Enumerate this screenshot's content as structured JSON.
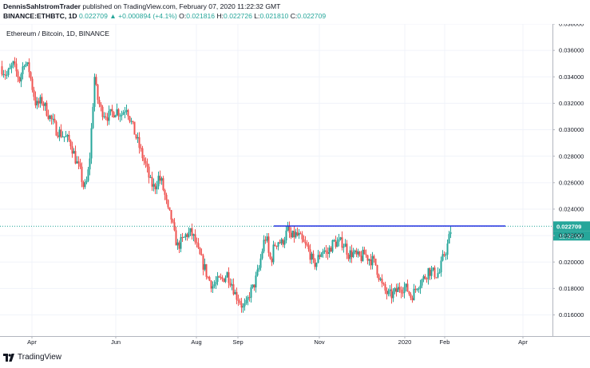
{
  "header": {
    "author": "DennisSahlstromTrader",
    "published": "published on TradingView.com, February 07, 2020 11:22:32 GMT",
    "symbol": "BINANCE:ETHBTC, 1D",
    "price": "0.022709",
    "change": "+0.000894 (+4.1%)",
    "o_label": "O:",
    "o": "0.021816",
    "h_label": "H:",
    "h": "0.022726",
    "l_label": "L:",
    "l": "0.021810",
    "c_label": "C:",
    "c": "0.022709"
  },
  "footer": {
    "brand": "TradingView"
  },
  "colors": {
    "up": "#26a69a",
    "down": "#ef5350",
    "resistance": "#2030e0",
    "price_line": "#26a69a"
  },
  "chart_data": {
    "type": "candlestick",
    "title": "Ethereum / Bitcoin, 1D, BINANCE",
    "x_ticks": [
      "Apr",
      "Jun",
      "Aug",
      "Sep",
      "Nov",
      "2020",
      "Feb",
      "Apr"
    ],
    "y_ticks": [
      "0.038000",
      "0.036000",
      "0.034000",
      "0.032000",
      "0.030000",
      "0.028000",
      "0.026000",
      "0.024000",
      "0.022000",
      "0.020000",
      "0.018000",
      "0.016000"
    ],
    "ylim": [
      0.0144,
      0.038
    ],
    "last_price_label": "0.022709",
    "countdown_label": "12:37:29",
    "resistance_level": 0.02272,
    "price_anchors": [
      [
        0,
        0.0348
      ],
      [
        8,
        0.0341
      ],
      [
        16,
        0.0349
      ],
      [
        24,
        0.0338
      ],
      [
        30,
        0.0352
      ],
      [
        36,
        0.0345
      ],
      [
        40,
        0.0332
      ],
      [
        45,
        0.0318
      ],
      [
        52,
        0.0322
      ],
      [
        60,
        0.0312
      ],
      [
        70,
        0.03
      ],
      [
        80,
        0.0295
      ],
      [
        88,
        0.029
      ],
      [
        95,
        0.0276
      ],
      [
        100,
        0.0268
      ],
      [
        105,
        0.0255
      ],
      [
        109,
        0.0262
      ],
      [
        112,
        0.028
      ],
      [
        115,
        0.031
      ],
      [
        118,
        0.034
      ],
      [
        121,
        0.0325
      ],
      [
        126,
        0.0315
      ],
      [
        135,
        0.031
      ],
      [
        145,
        0.0315
      ],
      [
        152,
        0.0312
      ],
      [
        158,
        0.0318
      ],
      [
        163,
        0.0307
      ],
      [
        168,
        0.0298
      ],
      [
        175,
        0.0285
      ],
      [
        182,
        0.0273
      ],
      [
        188,
        0.026
      ],
      [
        193,
        0.0256
      ],
      [
        198,
        0.0264
      ],
      [
        202,
        0.026
      ],
      [
        206,
        0.025
      ],
      [
        210,
        0.0238
      ],
      [
        214,
        0.0233
      ],
      [
        218,
        0.022
      ],
      [
        222,
        0.0212
      ],
      [
        228,
        0.0216
      ],
      [
        233,
        0.0221
      ],
      [
        239,
        0.0222
      ],
      [
        243,
        0.0217
      ],
      [
        248,
        0.0207
      ],
      [
        252,
        0.0201
      ],
      [
        256,
        0.0195
      ],
      [
        260,
        0.0188
      ],
      [
        266,
        0.0182
      ],
      [
        272,
        0.0185
      ],
      [
        278,
        0.0187
      ],
      [
        284,
        0.0191
      ],
      [
        290,
        0.0184
      ],
      [
        294,
        0.0176
      ],
      [
        299,
        0.0172
      ],
      [
        304,
        0.0165
      ],
      [
        308,
        0.0167
      ],
      [
        312,
        0.0176
      ],
      [
        316,
        0.018
      ],
      [
        320,
        0.0187
      ],
      [
        324,
        0.0195
      ],
      [
        327,
        0.0206
      ],
      [
        330,
        0.0215
      ],
      [
        333,
        0.022
      ],
      [
        336,
        0.0206
      ],
      [
        339,
        0.02
      ],
      [
        343,
        0.0213
      ],
      [
        348,
        0.0216
      ],
      [
        352,
        0.0214
      ],
      [
        356,
        0.0219
      ],
      [
        360,
        0.0224
      ],
      [
        364,
        0.0218
      ],
      [
        369,
        0.0221
      ],
      [
        374,
        0.0219
      ],
      [
        379,
        0.0214
      ],
      [
        384,
        0.0211
      ],
      [
        388,
        0.0206
      ],
      [
        392,
        0.0198
      ],
      [
        396,
        0.02
      ],
      [
        401,
        0.0207
      ],
      [
        405,
        0.021
      ],
      [
        409,
        0.0205
      ],
      [
        413,
        0.0211
      ],
      [
        418,
        0.0215
      ],
      [
        423,
        0.0214
      ],
      [
        428,
        0.0215
      ],
      [
        432,
        0.0212
      ],
      [
        436,
        0.0206
      ],
      [
        441,
        0.0207
      ],
      [
        446,
        0.0204
      ],
      [
        451,
        0.0203
      ],
      [
        456,
        0.0206
      ],
      [
        461,
        0.0203
      ],
      [
        466,
        0.0201
      ],
      [
        470,
        0.0198
      ],
      [
        474,
        0.019
      ],
      [
        478,
        0.0182
      ],
      [
        482,
        0.0178
      ],
      [
        486,
        0.0175
      ],
      [
        490,
        0.0175
      ],
      [
        495,
        0.0177
      ],
      [
        500,
        0.0181
      ],
      [
        505,
        0.0181
      ],
      [
        510,
        0.0179
      ],
      [
        514,
        0.0174
      ],
      [
        518,
        0.0177
      ],
      [
        522,
        0.0183
      ],
      [
        526,
        0.0185
      ],
      [
        531,
        0.0188
      ],
      [
        536,
        0.0194
      ],
      [
        541,
        0.0192
      ],
      [
        546,
        0.0191
      ],
      [
        550,
        0.0192
      ],
      [
        553,
        0.02
      ],
      [
        556,
        0.0206
      ],
      [
        559,
        0.021
      ],
      [
        562,
        0.0218
      ],
      [
        565,
        0.0227
      ]
    ]
  }
}
